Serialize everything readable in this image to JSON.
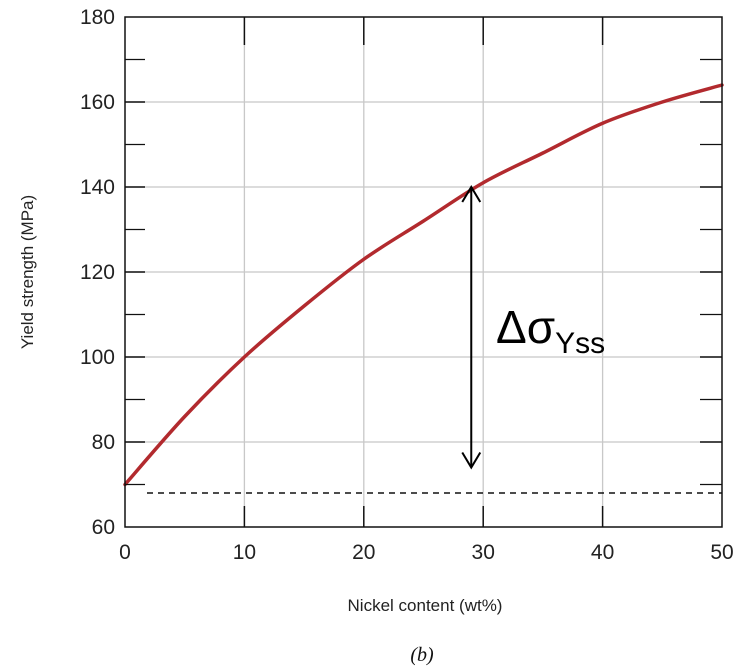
{
  "chart_data": {
    "type": "line",
    "title": "",
    "xlabel": "Nickel content (wt%)",
    "ylabel": "Yield strength (MPa)",
    "xlim": [
      0,
      50
    ],
    "ylim": [
      60,
      180
    ],
    "x_ticks": [
      0,
      10,
      20,
      30,
      40,
      50
    ],
    "y_ticks": [
      60,
      80,
      100,
      120,
      140,
      160,
      180
    ],
    "grid": true,
    "series": [
      {
        "color": "#b22a2e",
        "x": [
          0,
          5,
          10,
          15,
          20,
          25,
          30,
          35,
          40,
          45,
          50
        ],
        "y": [
          70,
          86,
          100,
          112,
          123,
          132,
          141,
          148,
          155,
          160,
          164
        ]
      }
    ],
    "reference_line": {
      "y": 68,
      "x_range": [
        0,
        50
      ],
      "style": "dashed"
    },
    "annotation": {
      "text_main": "Δσ",
      "text_sub": "Yss",
      "arrow_x": 29,
      "arrow_y_from": 74,
      "arrow_y_to": 140
    },
    "panel_label": "(b)"
  }
}
